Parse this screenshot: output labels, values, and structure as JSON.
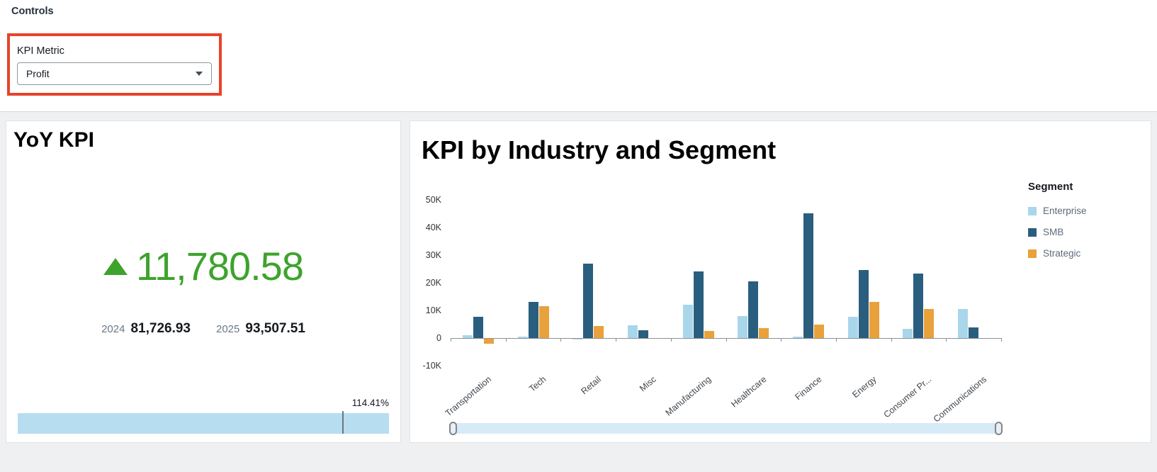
{
  "controls": {
    "section_title": "Controls",
    "kpi_metric_label": "KPI Metric",
    "kpi_metric_value": "Profit"
  },
  "yoy": {
    "title": "YoY KPI",
    "trend": "up",
    "value": "11,780.58",
    "years": [
      {
        "label": "2024",
        "value": "81,726.93"
      },
      {
        "label": "2025",
        "value": "93,507.51"
      }
    ],
    "progress_label": "114.41%",
    "progress_marker_pct": 87.4
  },
  "chart_data": {
    "type": "bar",
    "title": "KPI by Industry and Segment",
    "legend_title": "Segment",
    "legend_position": "right",
    "grid": false,
    "ylim": [
      -10000,
      50000
    ],
    "yticks": [
      {
        "label": "50K",
        "value": 50000
      },
      {
        "label": "40K",
        "value": 40000
      },
      {
        "label": "30K",
        "value": 30000
      },
      {
        "label": "20K",
        "value": 20000
      },
      {
        "label": "10K",
        "value": 10000
      },
      {
        "label": "0",
        "value": 0
      },
      {
        "label": "-10K",
        "value": -10000
      }
    ],
    "categories": [
      "Transportation",
      "Tech",
      "Retail",
      "Misc",
      "Manufacturing",
      "Healthcare",
      "Finance",
      "Energy",
      "Consumer Pr...",
      "Communications"
    ],
    "series": [
      {
        "name": "Enterprise",
        "color": "#a9d6ea",
        "values": [
          1000,
          400,
          -600,
          4600,
          12100,
          7900,
          600,
          7800,
          3400,
          10400
        ]
      },
      {
        "name": "SMB",
        "color": "#2a5e7e",
        "values": [
          7800,
          13200,
          26800,
          2900,
          24000,
          20600,
          45000,
          24500,
          23300,
          3900
        ]
      },
      {
        "name": "Strategic",
        "color": "#e9a13b",
        "values": [
          -2100,
          11500,
          4400,
          0,
          2600,
          3600,
          5000,
          13200,
          10600,
          0
        ]
      }
    ]
  },
  "colors": {
    "kpi_positive_green": "#3da32c",
    "highlight_box_red": "#e8432a",
    "progress_bar_blue": "#b7ddf0",
    "scrollbar_track_blue": "#d7eaf7"
  }
}
